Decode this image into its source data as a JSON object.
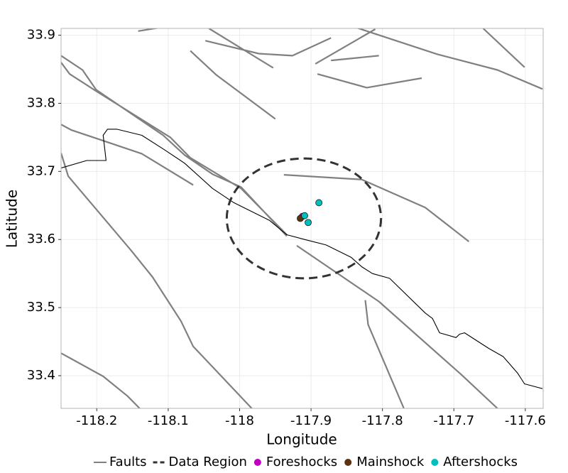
{
  "chart_data": {
    "type": "scatter",
    "xlabel": "Longitude",
    "ylabel": "Latitude",
    "xlim": [
      -118.25,
      -117.575
    ],
    "ylim": [
      33.352,
      33.91
    ],
    "xticks": [
      -118.2,
      -118.1,
      -118,
      -117.9,
      -117.8,
      -117.7,
      -117.6
    ],
    "yticks": [
      33.4,
      33.5,
      33.6,
      33.7,
      33.8,
      33.9
    ],
    "grid": true,
    "legend": "bottom",
    "lines": [
      {
        "name": "Faults",
        "color": "#808080",
        "x": [
          -118.25,
          -118.22,
          -118.201,
          -118.107,
          -118.077,
          -118.038,
          -117.998,
          -117.934,
          null,
          -118.25,
          -118.238,
          -118.201,
          -118.097,
          -118.069,
          -117.998,
          -117.934,
          null,
          -118.25,
          -118.236,
          -118.137,
          -118.065,
          null,
          -118.25,
          -118.24,
          -118.152,
          -118.122,
          -118.082,
          -118.065,
          -118.038,
          -117.983,
          null,
          -118.25,
          -118.236,
          -118.191,
          -118.157,
          -118.14,
          null,
          -118.142,
          -118.107,
          null,
          -118.043,
          -117.953,
          null,
          -118.048,
          -117.973,
          -117.926,
          -117.872,
          null,
          -118.069,
          -118.033,
          -117.95,
          null,
          -117.894,
          -117.81,
          null,
          -117.872,
          -117.805,
          null,
          -117.891,
          -117.822,
          -117.745,
          null,
          -117.839,
          -117.723,
          -117.639,
          -117.576,
          null,
          -117.659,
          -117.601,
          null,
          -117.938,
          -117.829,
          -117.74,
          -117.679,
          null,
          -117.92,
          -117.805,
          -117.69,
          -117.639,
          null,
          -117.824,
          -117.82,
          -117.77
        ],
        "y": [
          33.87,
          33.849,
          33.82,
          33.753,
          33.724,
          33.696,
          33.677,
          33.605,
          null,
          33.86,
          33.843,
          33.818,
          33.75,
          33.72,
          33.675,
          33.607,
          null,
          33.769,
          33.761,
          33.726,
          33.68,
          null,
          33.727,
          33.693,
          33.584,
          33.545,
          33.48,
          33.443,
          33.413,
          33.352,
          null,
          33.433,
          33.425,
          33.399,
          33.37,
          33.352,
          null,
          33.906,
          33.912,
          null,
          33.91,
          33.852,
          null,
          33.892,
          33.873,
          33.87,
          33.896,
          null,
          33.877,
          33.842,
          33.777,
          null,
          33.858,
          33.909,
          null,
          33.863,
          33.87,
          null,
          33.843,
          33.823,
          33.837,
          null,
          33.912,
          33.872,
          33.849,
          33.821,
          null,
          33.91,
          33.853,
          null,
          33.695,
          33.688,
          33.647,
          33.597,
          null,
          33.591,
          33.509,
          33.402,
          33.352,
          null,
          33.511,
          33.475,
          33.352
        ]
      },
      {
        "color": "#000000",
        "x": [
          -118.25,
          -118.214,
          -118.187,
          -118.191,
          -118.185,
          -118.172,
          -118.137,
          -118.107,
          -118.077,
          -118.038,
          -118.008,
          -117.958,
          -117.934,
          -117.909,
          -117.879,
          -117.844,
          -117.829,
          -117.814,
          -117.79,
          -117.74,
          -117.73,
          -117.72,
          -117.697,
          -117.692,
          -117.685,
          -117.651,
          -117.631,
          -117.611,
          -117.601,
          -117.576
        ],
        "y": [
          33.705,
          33.716,
          33.716,
          33.753,
          33.762,
          33.762,
          33.753,
          33.733,
          33.712,
          33.675,
          33.654,
          33.628,
          33.607,
          33.6,
          33.592,
          33.574,
          33.56,
          33.55,
          33.543,
          33.492,
          33.484,
          33.463,
          33.456,
          33.461,
          33.463,
          33.44,
          33.428,
          33.404,
          33.388,
          33.381
        ]
      }
    ],
    "region": {
      "name": "Data Region",
      "color": "#333333",
      "center": [
        -117.91,
        33.631
      ],
      "radius": [
        0.108,
        0.088
      ]
    },
    "series": [
      {
        "name": "Foreshocks",
        "color": "#bf00bf",
        "x": [
          -117.912
        ],
        "y": [
          33.634
        ]
      },
      {
        "name": "Mainshock",
        "color": "#5c3310",
        "x": [
          -117.915
        ],
        "y": [
          33.631
        ]
      },
      {
        "name": "Aftershocks",
        "color": "#00bfbf",
        "x": [
          -117.909,
          -117.904,
          -117.889
        ],
        "y": [
          33.635,
          33.625,
          33.654
        ]
      }
    ]
  }
}
